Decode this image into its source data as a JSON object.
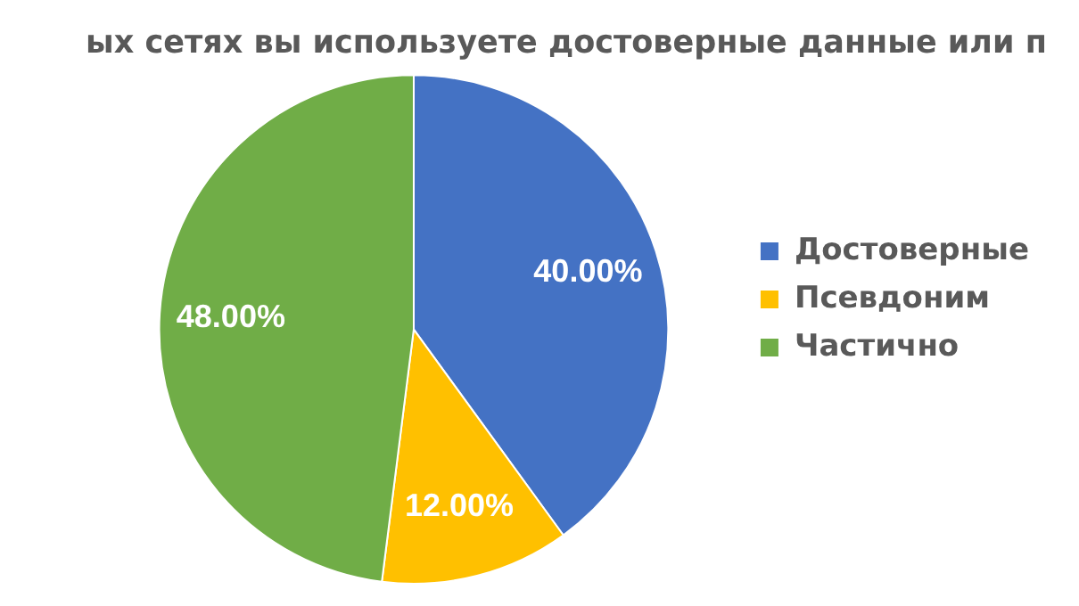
{
  "chart_data": {
    "type": "pie",
    "title": "ых сетях вы используете достоверные данные или п",
    "categories": [
      "Достоверные",
      "Псевдоним",
      "Частично"
    ],
    "values": [
      40,
      12,
      48
    ],
    "colors": [
      "#4472c4",
      "#ffc000",
      "#70ad47"
    ],
    "value_labels": [
      "40.00%",
      "12.00%",
      "48.00%"
    ],
    "legend": "right"
  }
}
